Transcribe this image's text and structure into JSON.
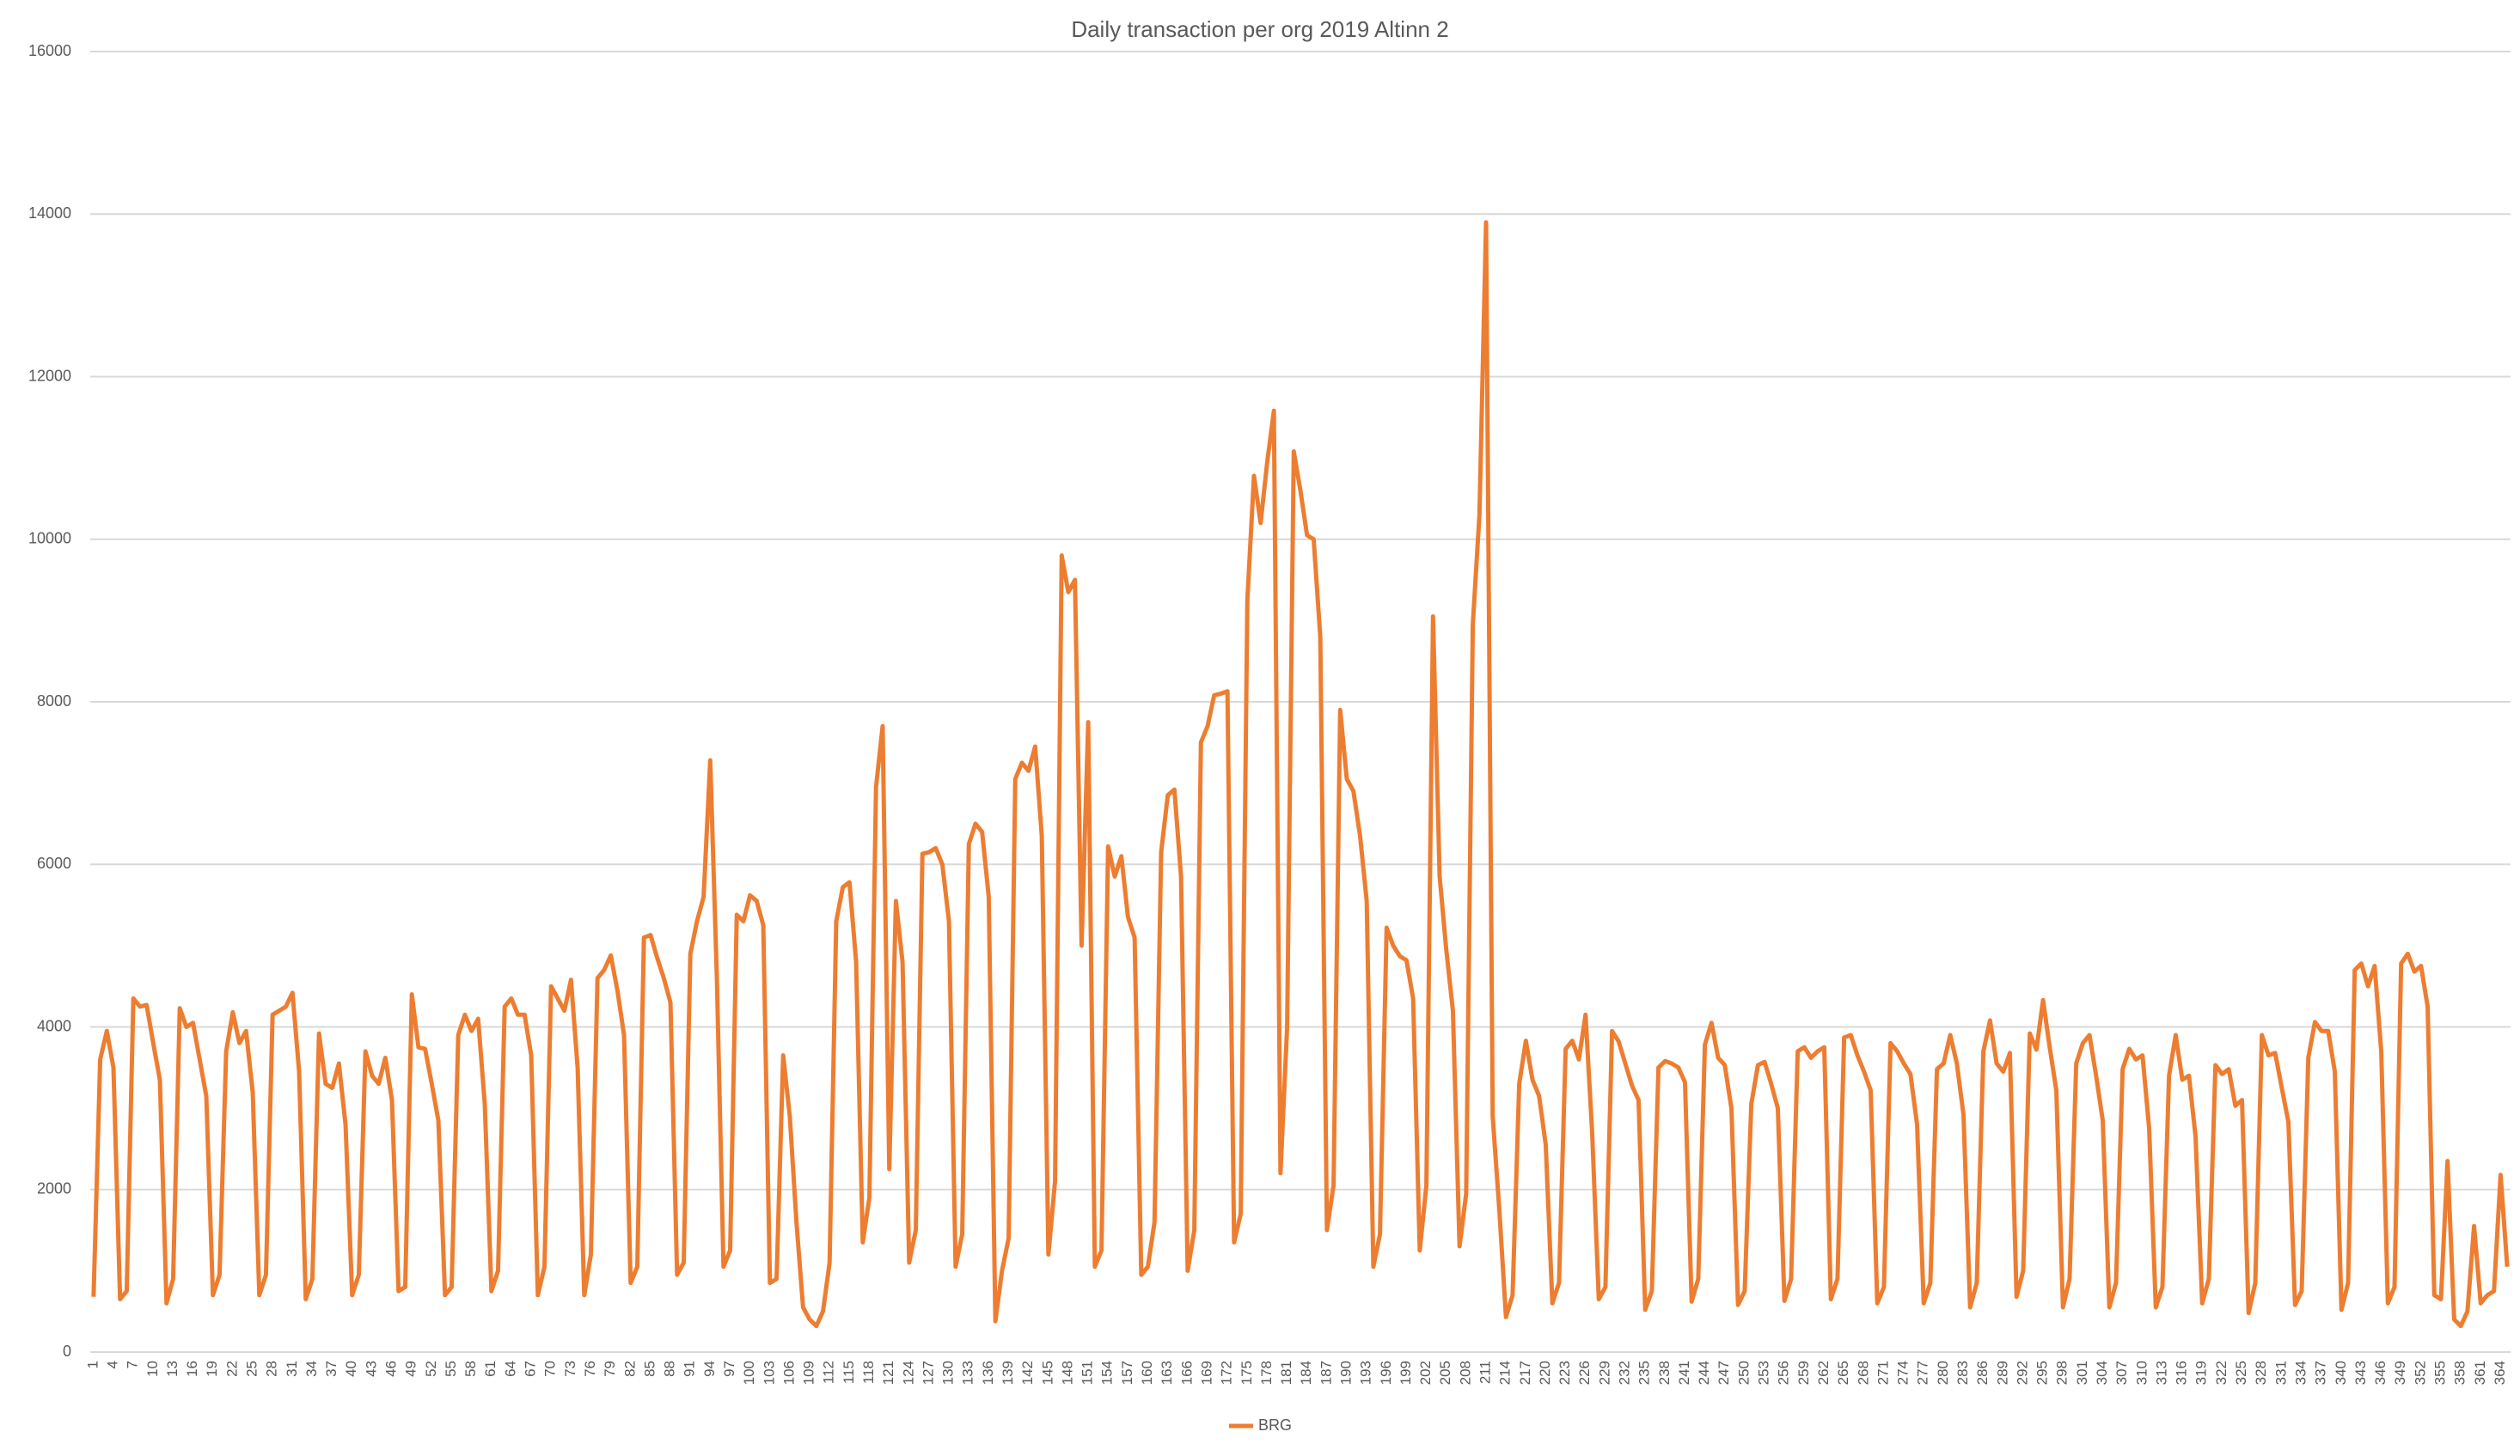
{
  "chart_data": {
    "type": "line",
    "title": "Daily transaction per org 2019 Altinn 2",
    "categories": [
      "1",
      null,
      null,
      "4",
      null,
      null,
      "7",
      null,
      null,
      "10",
      null,
      null,
      "13",
      null,
      null,
      "16",
      null,
      null,
      "19",
      null,
      null,
      "22",
      null,
      null,
      "25",
      null,
      null,
      "28",
      null,
      null,
      "31",
      null,
      null,
      "34",
      null,
      null,
      "37",
      null,
      null,
      "40",
      null,
      null,
      "43",
      null,
      null,
      "46",
      null,
      null,
      "49",
      null,
      null,
      "52",
      null,
      null,
      "55",
      null,
      null,
      "58",
      null,
      null,
      "61",
      null,
      null,
      "64",
      null,
      null,
      "67",
      null,
      null,
      "70",
      null,
      null,
      "73",
      null,
      null,
      "76",
      null,
      null,
      "79",
      null,
      null,
      "82",
      null,
      null,
      "85",
      null,
      null,
      "88",
      null,
      null,
      "91",
      null,
      null,
      "94",
      null,
      null,
      "97",
      null,
      null,
      "100",
      null,
      null,
      "103",
      null,
      null,
      "106",
      null,
      null,
      "109",
      null,
      null,
      "112",
      null,
      null,
      "115",
      null,
      null,
      "118",
      null,
      null,
      "121",
      null,
      null,
      "124",
      null,
      null,
      "127",
      null,
      null,
      "130",
      null,
      null,
      "133",
      null,
      null,
      "136",
      null,
      null,
      "139",
      null,
      null,
      "142",
      null,
      null,
      "145",
      null,
      null,
      "148",
      null,
      null,
      "151",
      null,
      null,
      "154",
      null,
      null,
      "157",
      null,
      null,
      "160",
      null,
      null,
      "163",
      null,
      null,
      "166",
      null,
      null,
      "169",
      null,
      null,
      "172",
      null,
      null,
      "175",
      null,
      null,
      "178",
      null,
      null,
      "181",
      null,
      null,
      "184",
      null,
      null,
      "187",
      null,
      null,
      "190",
      null,
      null,
      "193",
      null,
      null,
      "196",
      null,
      null,
      "199",
      null,
      null,
      "202",
      null,
      null,
      "205",
      null,
      null,
      "208",
      null,
      null,
      "211",
      null,
      null,
      "214",
      null,
      null,
      "217",
      null,
      null,
      "220",
      null,
      null,
      "223",
      null,
      null,
      "226",
      null,
      null,
      "229",
      null,
      null,
      "232",
      null,
      null,
      "235",
      null,
      null,
      "238",
      null,
      null,
      "241",
      null,
      null,
      "244",
      null,
      null,
      "247",
      null,
      null,
      "250",
      null,
      null,
      "253",
      null,
      null,
      "256",
      null,
      null,
      "259",
      null,
      null,
      "262",
      null,
      null,
      "265",
      null,
      null,
      "268",
      null,
      null,
      "271",
      null,
      null,
      "274",
      null,
      null,
      "277",
      null,
      null,
      "280",
      null,
      null,
      "283",
      null,
      null,
      "286",
      null,
      null,
      "289",
      null,
      null,
      "292",
      null,
      null,
      "295",
      null,
      null,
      "298",
      null,
      null,
      "301",
      null,
      null,
      "304",
      null,
      null,
      "307",
      null,
      null,
      "310",
      null,
      null,
      "313",
      null,
      null,
      "316",
      null,
      null,
      "319",
      null,
      null,
      "322",
      null,
      null,
      "325",
      null,
      null,
      "328",
      null,
      null,
      "331",
      null,
      null,
      "334",
      null,
      null,
      "337",
      null,
      null,
      "340",
      null,
      null,
      "343",
      null,
      null,
      "346",
      null,
      null,
      "349",
      null,
      null,
      "352",
      null,
      null,
      "355",
      null,
      null,
      "358",
      null,
      null,
      "361",
      null,
      null,
      "364",
      null
    ],
    "series": [
      {
        "name": "BRG",
        "color": "#ed7d31",
        "values": [
          680,
          3600,
          3950,
          3500,
          650,
          750,
          4350,
          4250,
          4270,
          3800,
          3350,
          600,
          900,
          4230,
          4000,
          4050,
          3600,
          3150,
          700,
          950,
          3700,
          4180,
          3800,
          3950,
          3200,
          700,
          950,
          4150,
          4200,
          4250,
          4420,
          3450,
          650,
          900,
          3920,
          3300,
          3250,
          3550,
          2800,
          700,
          950,
          3700,
          3400,
          3300,
          3620,
          3100,
          750,
          800,
          4400,
          3750,
          3730,
          3300,
          2850,
          700,
          800,
          3900,
          4150,
          3950,
          4100,
          3050,
          750,
          1000,
          4250,
          4350,
          4150,
          4150,
          3650,
          700,
          1050,
          4500,
          4350,
          4200,
          4580,
          3500,
          700,
          1200,
          4600,
          4700,
          4880,
          4450,
          3900,
          850,
          1050,
          5100,
          5130,
          4850,
          4600,
          4300,
          950,
          1100,
          4900,
          5300,
          5600,
          7280,
          4600,
          1050,
          1250,
          5380,
          5300,
          5620,
          5550,
          5250,
          850,
          900,
          3650,
          2900,
          1600,
          550,
          400,
          320,
          500,
          1100,
          5300,
          5720,
          5780,
          4800,
          1350,
          1900,
          6950,
          7700,
          2250,
          5550,
          4800,
          1100,
          1500,
          6130,
          6150,
          6200,
          6000,
          5300,
          1050,
          1450,
          6250,
          6500,
          6400,
          5600,
          380,
          1000,
          1400,
          7050,
          7250,
          7150,
          7450,
          6350,
          1200,
          2100,
          9800,
          9350,
          9500,
          5000,
          7750,
          1050,
          1250,
          6220,
          5850,
          6100,
          5350,
          5100,
          950,
          1050,
          1600,
          6150,
          6850,
          6920,
          5850,
          1000,
          1500,
          7500,
          7700,
          8080,
          8100,
          8130,
          1350,
          1700,
          9250,
          10780,
          10200,
          10950,
          11580,
          2200,
          4000,
          11080,
          10600,
          10050,
          10000,
          8800,
          1500,
          2050,
          7900,
          7050,
          6900,
          6350,
          5550,
          1050,
          1450,
          5220,
          5000,
          4870,
          4820,
          4350,
          1250,
          2050,
          9050,
          5850,
          4950,
          4200,
          1300,
          1950,
          8950,
          10300,
          13900,
          2900,
          1750,
          430,
          700,
          3300,
          3830,
          3350,
          3150,
          2550,
          600,
          850,
          3730,
          3830,
          3600,
          4150,
          2700,
          650,
          800,
          3950,
          3820,
          3550,
          3280,
          3100,
          520,
          750,
          3500,
          3580,
          3550,
          3500,
          3320,
          620,
          900,
          3780,
          4050,
          3620,
          3530,
          3000,
          580,
          750,
          3050,
          3530,
          3570,
          3300,
          3000,
          630,
          900,
          3700,
          3750,
          3620,
          3700,
          3750,
          650,
          900,
          3870,
          3900,
          3650,
          3450,
          3220,
          600,
          800,
          3800,
          3700,
          3550,
          3420,
          2800,
          600,
          850,
          3480,
          3550,
          3900,
          3550,
          2920,
          550,
          850,
          3700,
          4080,
          3550,
          3450,
          3680,
          680,
          1000,
          3920,
          3720,
          4330,
          3750,
          3220,
          550,
          900,
          3550,
          3800,
          3900,
          3400,
          2850,
          550,
          850,
          3480,
          3730,
          3600,
          3650,
          2750,
          550,
          800,
          3400,
          3900,
          3350,
          3400,
          2650,
          600,
          900,
          3530,
          3420,
          3480,
          3030,
          3100,
          480,
          850,
          3900,
          3650,
          3680,
          3250,
          2830,
          580,
          750,
          3620,
          4060,
          3950,
          3950,
          3450,
          520,
          850,
          4700,
          4780,
          4500,
          4750,
          3700,
          600,
          800,
          4780,
          4900,
          4680,
          4750,
          4250,
          700,
          650,
          2350,
          400,
          320,
          500,
          1550,
          600,
          700,
          750,
          2180,
          1050
        ]
      }
    ],
    "ylim": [
      0,
      16000
    ],
    "yticks": [
      0,
      2000,
      4000,
      6000,
      8000,
      10000,
      12000,
      14000,
      16000
    ],
    "grid": true,
    "legend": "bottom"
  }
}
